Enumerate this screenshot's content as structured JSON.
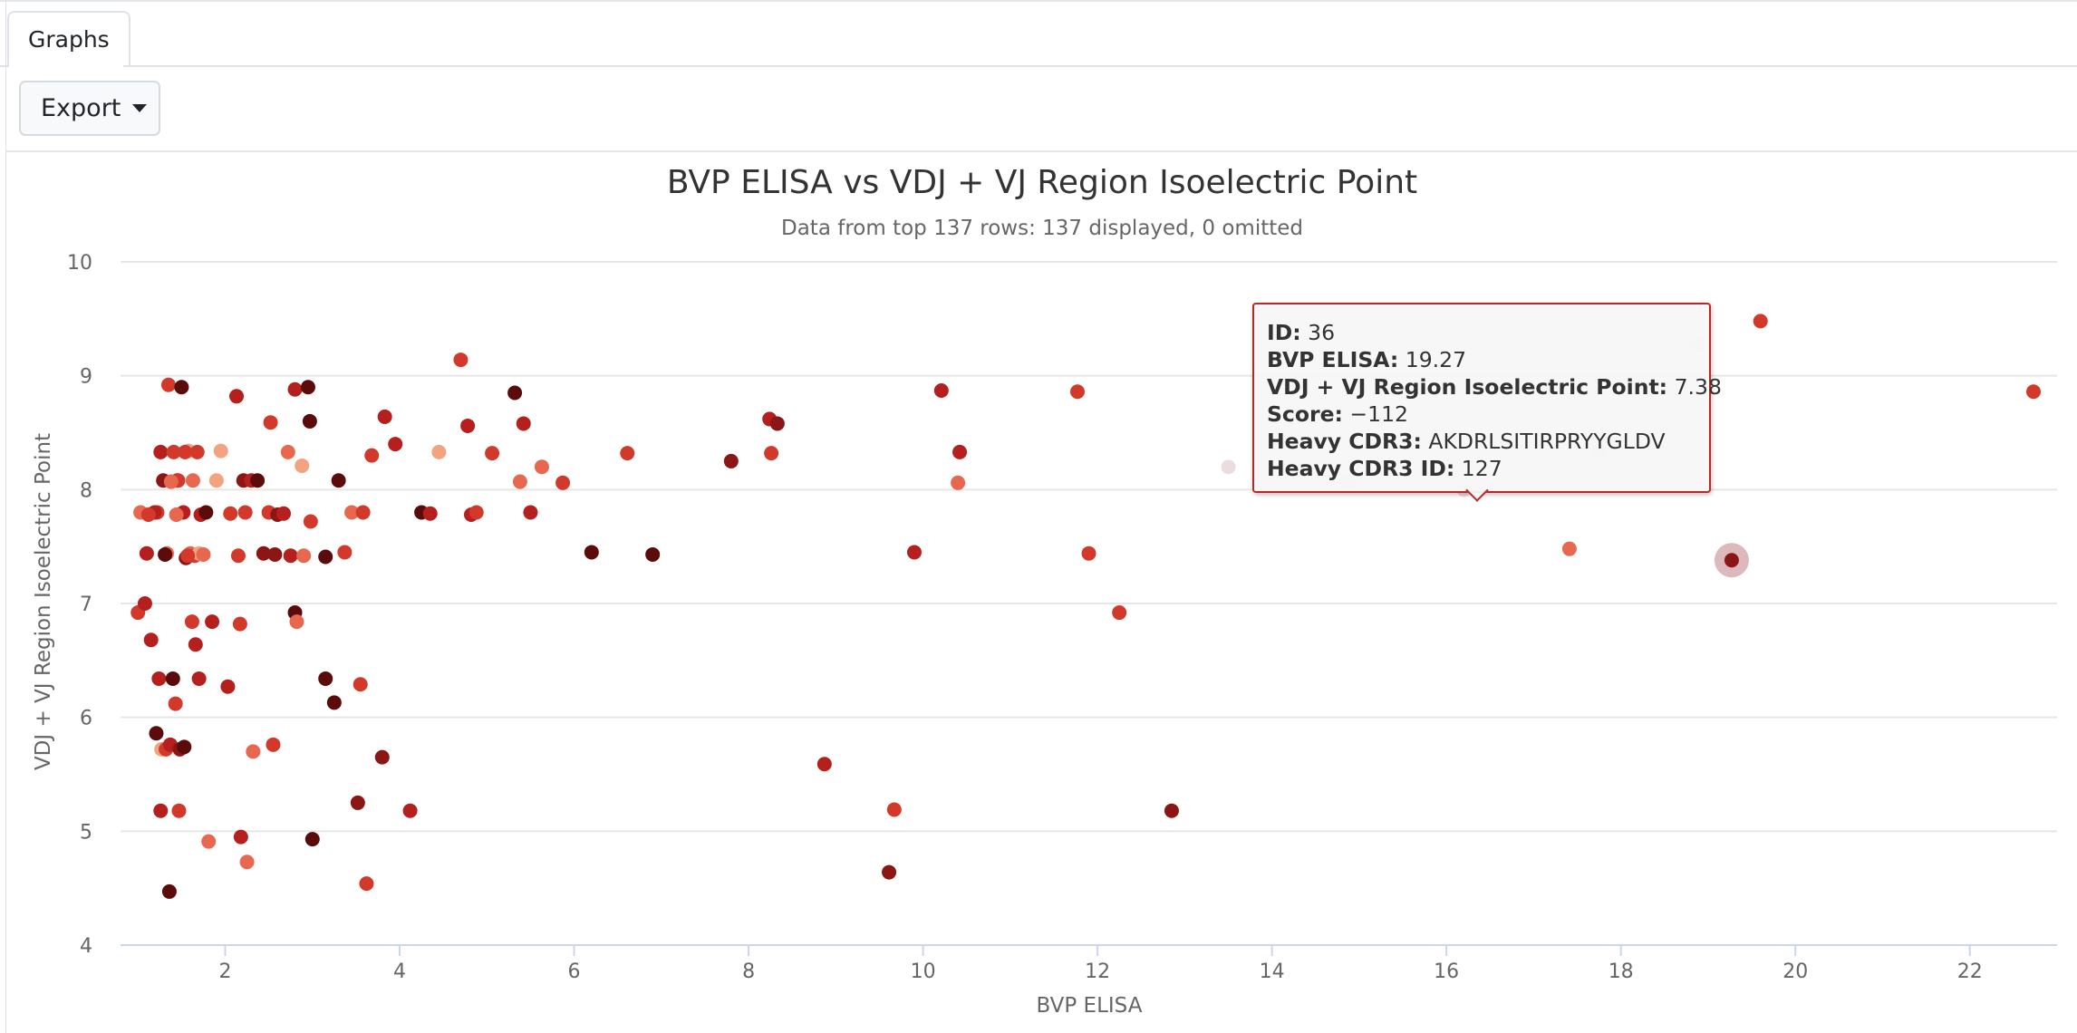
{
  "tabs": [
    {
      "label": "Graphs"
    }
  ],
  "toolbar": {
    "export_label": "Export"
  },
  "colors": {
    "palette": [
      "#f2a481",
      "#e8674f",
      "#d2392b",
      "#b5201e",
      "#8c1515",
      "#5c0b0b"
    ],
    "gridline": "#e6e6e6",
    "hover_halo": "#dcb9bd"
  },
  "chart_data": {
    "type": "scatter",
    "title": "BVP ELISA vs VDJ + VJ Region Isoelectric Point",
    "subtitle": "Data from top 137 rows: 137 displayed, 0 omitted",
    "xlabel": "BVP ELISA",
    "ylabel": "VDJ + VJ Region Isoelectric Point",
    "xlim": [
      0.8,
      23.0
    ],
    "ylim": [
      4,
      10
    ],
    "xticks": [
      2,
      4,
      6,
      8,
      10,
      12,
      14,
      16,
      18,
      20,
      22
    ],
    "yticks": [
      4,
      5,
      6,
      7,
      8,
      9,
      10
    ],
    "grid": "horizontal",
    "legend": "none",
    "points": [
      [
        1.03,
        7.8,
        1
      ],
      [
        1.1,
        7.44,
        3
      ],
      [
        1.15,
        6.68,
        3
      ],
      [
        1.22,
        7.8,
        2
      ],
      [
        1.26,
        8.33,
        3
      ],
      [
        1.29,
        8.08,
        4
      ],
      [
        1.35,
        8.92,
        2
      ],
      [
        1.41,
        8.33,
        2
      ],
      [
        1.45,
        8.08,
        3
      ],
      [
        1.5,
        8.9,
        5
      ],
      [
        1.21,
        5.86,
        5
      ],
      [
        1.24,
        6.34,
        3
      ],
      [
        1.27,
        5.72,
        0
      ],
      [
        1.32,
        5.72,
        2
      ],
      [
        1.37,
        5.76,
        3
      ],
      [
        1.4,
        6.34,
        5
      ],
      [
        1.43,
        6.12,
        2
      ],
      [
        1.48,
        5.72,
        4
      ],
      [
        1.53,
        5.74,
        5
      ],
      [
        1.26,
        5.18,
        3
      ],
      [
        1.47,
        5.18,
        2
      ],
      [
        1.36,
        4.47,
        5
      ],
      [
        1.0,
        6.92,
        2
      ],
      [
        1.19,
        7.8,
        3
      ],
      [
        1.33,
        7.44,
        1
      ],
      [
        1.46,
        8.08,
        2
      ],
      [
        1.52,
        7.8,
        3
      ],
      [
        1.55,
        7.4,
        4
      ],
      [
        1.6,
        7.44,
        1
      ],
      [
        1.65,
        7.42,
        2
      ],
      [
        1.7,
        7.44,
        0
      ],
      [
        1.58,
        8.34,
        0
      ],
      [
        1.63,
        8.08,
        1
      ],
      [
        1.68,
        8.33,
        2
      ],
      [
        1.72,
        7.78,
        3
      ],
      [
        1.78,
        7.8,
        5
      ],
      [
        1.62,
        6.84,
        2
      ],
      [
        1.66,
        6.64,
        3
      ],
      [
        1.7,
        6.34,
        3
      ],
      [
        1.81,
        4.91,
        1
      ],
      [
        1.9,
        8.08,
        0
      ],
      [
        1.95,
        8.34,
        0
      ],
      [
        2.03,
        6.27,
        3
      ],
      [
        2.13,
        8.82,
        3
      ],
      [
        2.15,
        7.42,
        2
      ],
      [
        2.17,
        6.82,
        2
      ],
      [
        2.18,
        4.95,
        3
      ],
      [
        2.21,
        8.08,
        4
      ],
      [
        2.23,
        7.8,
        2
      ],
      [
        2.25,
        4.73,
        1
      ],
      [
        2.3,
        8.08,
        3
      ],
      [
        2.32,
        5.7,
        1
      ],
      [
        2.37,
        8.08,
        5
      ],
      [
        2.5,
        7.8,
        2
      ],
      [
        2.52,
        8.59,
        2
      ],
      [
        2.55,
        5.76,
        2
      ],
      [
        2.57,
        7.43,
        4
      ],
      [
        2.6,
        7.78,
        4
      ],
      [
        2.72,
        8.33,
        1
      ],
      [
        2.75,
        7.42,
        3
      ],
      [
        2.8,
        8.88,
        3
      ],
      [
        2.8,
        6.92,
        5
      ],
      [
        2.82,
        6.84,
        1
      ],
      [
        2.88,
        8.21,
        0
      ],
      [
        2.9,
        7.42,
        1
      ],
      [
        2.95,
        8.9,
        5
      ],
      [
        2.97,
        8.6,
        5
      ],
      [
        2.98,
        7.72,
        2
      ],
      [
        3.0,
        4.93,
        5
      ],
      [
        3.15,
        6.34,
        5
      ],
      [
        3.15,
        7.41,
        5
      ],
      [
        3.25,
        6.13,
        5
      ],
      [
        3.3,
        8.08,
        5
      ],
      [
        3.45,
        7.8,
        1
      ],
      [
        3.52,
        5.25,
        4
      ],
      [
        3.55,
        6.29,
        2
      ],
      [
        3.58,
        7.8,
        2
      ],
      [
        3.62,
        4.54,
        2
      ],
      [
        3.68,
        8.3,
        2
      ],
      [
        3.8,
        5.65,
        4
      ],
      [
        3.83,
        8.64,
        3
      ],
      [
        3.95,
        8.4,
        3
      ],
      [
        4.12,
        5.18,
        3
      ],
      [
        4.25,
        7.8,
        5
      ],
      [
        4.35,
        7.79,
        3
      ],
      [
        4.45,
        8.33,
        0
      ],
      [
        4.7,
        9.14,
        2
      ],
      [
        4.78,
        8.56,
        3
      ],
      [
        4.82,
        7.78,
        3
      ],
      [
        4.88,
        7.8,
        2
      ],
      [
        5.06,
        8.32,
        2
      ],
      [
        5.32,
        8.85,
        5
      ],
      [
        5.38,
        8.07,
        1
      ],
      [
        5.42,
        8.58,
        3
      ],
      [
        5.63,
        8.2,
        1
      ],
      [
        5.87,
        8.06,
        2
      ],
      [
        6.2,
        7.45,
        5
      ],
      [
        6.61,
        8.32,
        2
      ],
      [
        6.9,
        7.43,
        5
      ],
      [
        8.24,
        8.62,
        3
      ],
      [
        8.26,
        8.32,
        2
      ],
      [
        8.33,
        8.58,
        4
      ],
      [
        8.87,
        5.59,
        3
      ],
      [
        9.61,
        4.64,
        4
      ],
      [
        9.67,
        5.19,
        2
      ],
      [
        10.21,
        8.87,
        3
      ],
      [
        10.4,
        8.06,
        1
      ],
      [
        10.42,
        8.33,
        3
      ],
      [
        11.77,
        8.86,
        2
      ],
      [
        11.9,
        7.44,
        2
      ],
      [
        12.25,
        6.92,
        2
      ],
      [
        12.85,
        5.18,
        4
      ],
      [
        17.41,
        7.48,
        1
      ],
      [
        19.6,
        9.48,
        2
      ],
      [
        22.73,
        8.86,
        2
      ],
      [
        1.12,
        7.78,
        2
      ],
      [
        1.31,
        7.43,
        5
      ],
      [
        1.38,
        8.07,
        1
      ],
      [
        1.44,
        7.78,
        1
      ],
      [
        1.54,
        8.33,
        2
      ],
      [
        1.57,
        7.42,
        2
      ],
      [
        1.75,
        7.43,
        1
      ],
      [
        1.85,
        6.84,
        3
      ],
      [
        2.06,
        7.79,
        2
      ],
      [
        2.44,
        7.44,
        4
      ],
      [
        2.67,
        7.79,
        3
      ],
      [
        3.37,
        7.45,
        2
      ],
      [
        5.5,
        7.8,
        3
      ],
      [
        7.8,
        8.25,
        4
      ],
      [
        9.9,
        7.45,
        3
      ],
      [
        14.87,
        8.07,
        0
      ],
      [
        17.75,
        8.34,
        0
      ],
      [
        18.88,
        9.28,
        0
      ],
      [
        19.27,
        7.38,
        4
      ],
      [
        13.5,
        8.2,
        0
      ],
      [
        16.2,
        8.0,
        0
      ],
      [
        1.08,
        7.0,
        3
      ]
    ],
    "hovered_point": {
      "x": 19.27,
      "y": 7.38
    }
  },
  "tooltip": {
    "rows": [
      {
        "label": "ID:",
        "value": "36"
      },
      {
        "label": "BVP ELISA:",
        "value": "19.27"
      },
      {
        "label": "VDJ + VJ Region Isoelectric Point:",
        "value": "7.38"
      },
      {
        "label": "Score:",
        "value": "−112"
      },
      {
        "label": "Heavy CDR3:",
        "value": "AKDRLSITIRPRYYGLDV"
      },
      {
        "label": "Heavy CDR3 ID:",
        "value": "127"
      }
    ]
  }
}
